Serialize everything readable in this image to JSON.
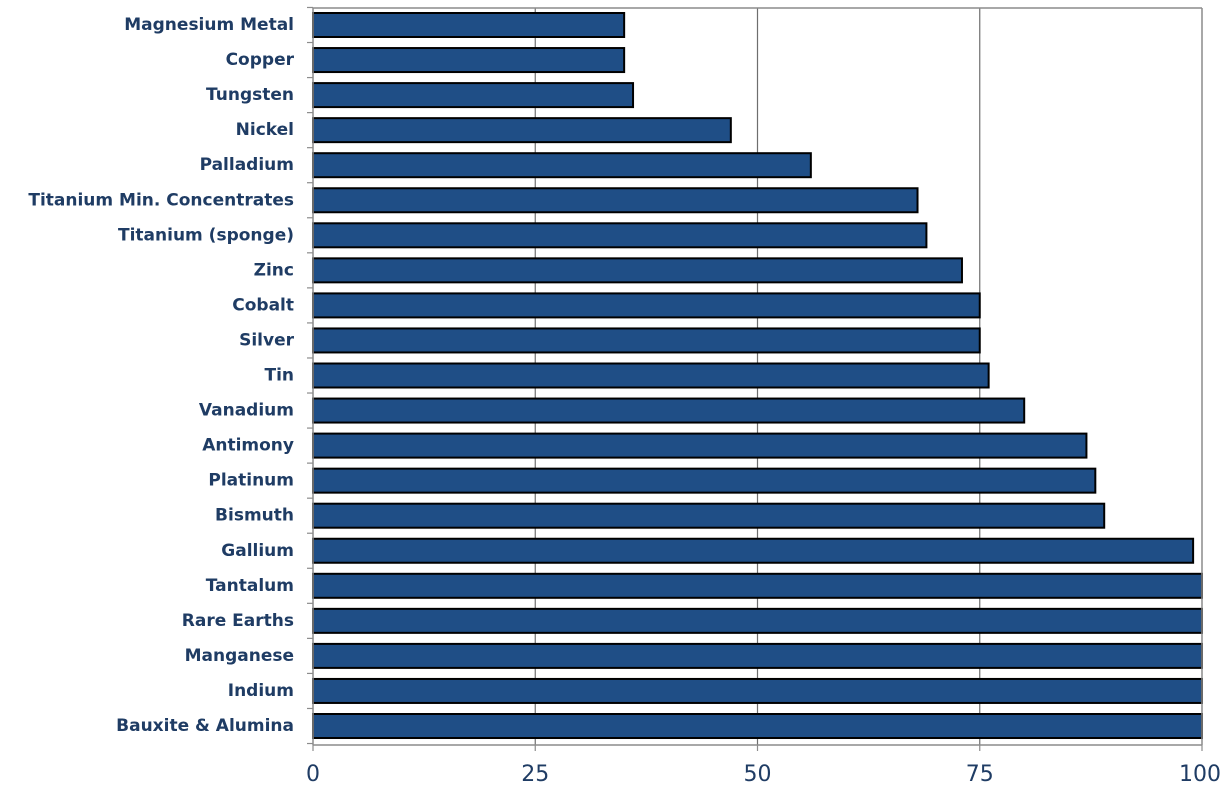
{
  "chart_data": {
    "type": "bar",
    "orientation": "horizontal",
    "categories": [
      "Magnesium Metal",
      "Copper",
      "Tungsten",
      "Nickel",
      "Palladium",
      "Titanium Min. Concentrates",
      "Titanium (sponge)",
      "Zinc",
      "Cobalt",
      "Silver",
      "Tin",
      "Vanadium",
      "Antimony",
      "Platinum",
      "Bismuth",
      "Gallium",
      "Tantalum",
      "Rare Earths",
      "Manganese",
      "Indium",
      "Bauxite & Alumina"
    ],
    "values": [
      35,
      35,
      36,
      47,
      56,
      68,
      69,
      73,
      75,
      75,
      76,
      80,
      87,
      88,
      89,
      99,
      100,
      100,
      100,
      100,
      100
    ],
    "xlim": [
      0,
      100
    ],
    "xticks": [
      "0",
      "25",
      "50",
      "75",
      "100"
    ],
    "title": "",
    "xlabel": "",
    "ylabel": "",
    "grid": "vertical",
    "legend": "none",
    "colors": {
      "bar_fill": "#1f4e86",
      "bar_stroke": "#000000",
      "label_text": "#1f3c64",
      "tick_text": "#1f3c64",
      "gridline": "#6e6e6e",
      "frame": "#8c8c8c"
    }
  }
}
